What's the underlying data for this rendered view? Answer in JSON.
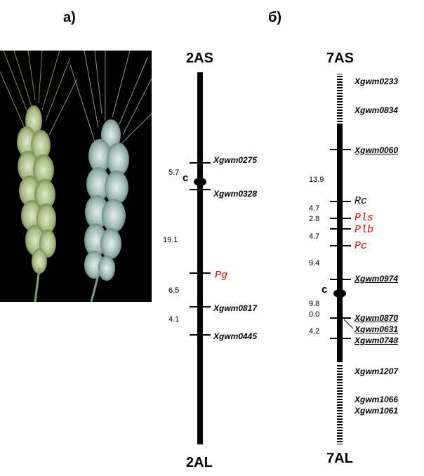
{
  "panels": {
    "a": {
      "label": "а)"
    },
    "b": {
      "label": "б)"
    }
  },
  "photo": {
    "subject": "two wheat spikes on black background",
    "label": ""
  },
  "map_2A": {
    "top_label": "2AS",
    "bottom_label": "2AL",
    "centromere_label": "с",
    "markers": [
      {
        "name": "Xgwm0275",
        "type": "marker",
        "underline": false
      },
      {
        "name": "Xgwm0328",
        "type": "marker",
        "underline": false
      },
      {
        "name": "Pg",
        "type": "gene",
        "color": "#e00000"
      },
      {
        "name": "Xgwm0817",
        "type": "marker",
        "underline": false
      },
      {
        "name": "Xgwm0445",
        "type": "marker",
        "underline": false
      }
    ],
    "distances": [
      "5.7",
      "19.1",
      "6.5",
      "4.1"
    ]
  },
  "map_7A": {
    "top_label": "7AS",
    "bottom_label": "7AL",
    "centromere_label": "с",
    "markers": [
      {
        "name": "Xgwm0233",
        "type": "marker",
        "underline": false
      },
      {
        "name": "Xgwm0834",
        "type": "marker",
        "underline": false
      },
      {
        "name": "Xgwm0060",
        "type": "marker",
        "underline": true
      },
      {
        "name": "Rc",
        "type": "gene",
        "color": "#000000"
      },
      {
        "name": "Pls",
        "type": "gene",
        "color": "#e00000"
      },
      {
        "name": "Plb",
        "type": "gene",
        "color": "#e00000"
      },
      {
        "name": "Pc",
        "type": "gene",
        "color": "#e00000"
      },
      {
        "name": "Xgwm0974",
        "type": "marker",
        "underline": true
      },
      {
        "name": "Xgwm0870",
        "type": "marker",
        "underline": true
      },
      {
        "name": "Xgwm0631",
        "type": "marker",
        "underline": true
      },
      {
        "name": "Xgwm0748",
        "type": "marker",
        "underline": true
      },
      {
        "name": "Xgwm1207",
        "type": "marker",
        "underline": false
      },
      {
        "name": "Xgwm1066",
        "type": "marker",
        "underline": false
      },
      {
        "name": "Xgwm1061",
        "type": "marker",
        "underline": false
      }
    ],
    "distances": [
      "13.9",
      "4.7",
      "2.8",
      "4.7",
      "9.4",
      "9.8",
      "0.0",
      "4.2"
    ]
  },
  "colors": {
    "gene_red": "#e00000",
    "chromosome": "#000000",
    "photo_bg": "#000000"
  }
}
